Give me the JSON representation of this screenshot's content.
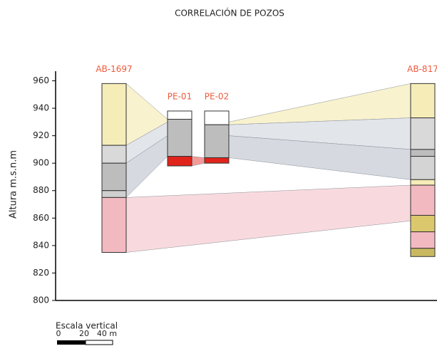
{
  "chart_data": {
    "type": "well-correlation",
    "title": "CORRELACIÓN DE POZOS",
    "y_label": "Altura m.s.n.m",
    "ylim": [
      800,
      967
    ],
    "yticks": [
      800,
      820,
      840,
      860,
      880,
      900,
      920,
      940,
      960
    ],
    "wells": [
      {
        "name": "AB-1697",
        "layers": [
          {
            "top": 958,
            "bottom": 913,
            "color": "#f6ecb8"
          },
          {
            "top": 913,
            "bottom": 900,
            "color": "#d9d9d9"
          },
          {
            "top": 900,
            "bottom": 880,
            "color": "#bdbdbd"
          },
          {
            "top": 880,
            "bottom": 875,
            "color": "#cfcfcf"
          },
          {
            "top": 875,
            "bottom": 835,
            "color": "#f3b9c1"
          }
        ]
      },
      {
        "name": "PE-01",
        "layers": [
          {
            "top": 938,
            "bottom": 932,
            "color": "#ffffff"
          },
          {
            "top": 932,
            "bottom": 905,
            "color": "#bdbdbd"
          },
          {
            "top": 905,
            "bottom": 898,
            "color": "#e0241c"
          }
        ]
      },
      {
        "name": "PE-02",
        "layers": [
          {
            "top": 938,
            "bottom": 928,
            "color": "#ffffff"
          },
          {
            "top": 928,
            "bottom": 904,
            "color": "#bdbdbd"
          },
          {
            "top": 904,
            "bottom": 900,
            "color": "#e0241c"
          }
        ]
      },
      {
        "name": "AB-817",
        "layers": [
          {
            "top": 958,
            "bottom": 933,
            "color": "#f6ecb8"
          },
          {
            "top": 933,
            "bottom": 910,
            "color": "#d9d9d9"
          },
          {
            "top": 910,
            "bottom": 905,
            "color": "#bdbdbd"
          },
          {
            "top": 905,
            "bottom": 888,
            "color": "#d4d4d4"
          },
          {
            "top": 888,
            "bottom": 884,
            "color": "#f6ecb8"
          },
          {
            "top": 884,
            "bottom": 862,
            "color": "#f3b9c1"
          },
          {
            "top": 862,
            "bottom": 850,
            "color": "#dcc86c"
          },
          {
            "top": 850,
            "bottom": 838,
            "color": "#f3b9c1"
          },
          {
            "top": 838,
            "bottom": 832,
            "color": "#c9b860"
          }
        ]
      }
    ],
    "correlations": [
      {
        "color": "#f7f0c6",
        "from": {
          "well": "AB-1697",
          "top": 958,
          "bottom": 913
        },
        "to": {
          "well": "PE-01",
          "top": 932,
          "bottom": 930
        }
      },
      {
        "color": "#f7f0c6",
        "from": {
          "well": "PE-02",
          "top": 930,
          "bottom": 928
        },
        "to": {
          "well": "AB-817",
          "top": 958,
          "bottom": 933
        }
      },
      {
        "color": "#dde0e6",
        "from": {
          "well": "AB-1697",
          "top": 913,
          "bottom": 900
        },
        "to": {
          "well": "PE-01",
          "top": 930,
          "bottom": 920
        }
      },
      {
        "color": "#dde0e6",
        "from": {
          "well": "PE-02",
          "top": 928,
          "bottom": 920
        },
        "to": {
          "well": "AB-817",
          "top": 933,
          "bottom": 910
        }
      },
      {
        "color": "#cfd3da",
        "from": {
          "well": "AB-1697",
          "top": 900,
          "bottom": 875
        },
        "to": {
          "well": "PE-01",
          "top": 920,
          "bottom": 905
        }
      },
      {
        "color": "#cfd3da",
        "from": {
          "well": "PE-02",
          "top": 920,
          "bottom": 904
        },
        "to": {
          "well": "AB-817",
          "top": 910,
          "bottom": 888
        }
      },
      {
        "color": "#f7d3d8",
        "from": {
          "well": "AB-1697",
          "top": 875,
          "bottom": 835
        },
        "to": {
          "well": "AB-817",
          "top": 884,
          "bottom": 858
        }
      },
      {
        "color": "#f08a86",
        "from": {
          "well": "PE-01",
          "top": 905,
          "bottom": 898
        },
        "to": {
          "well": "PE-02",
          "top": 904,
          "bottom": 900
        }
      }
    ],
    "scale": {
      "title": "Escala vertical",
      "labels": [
        "0",
        "20",
        "40 m"
      ]
    }
  }
}
